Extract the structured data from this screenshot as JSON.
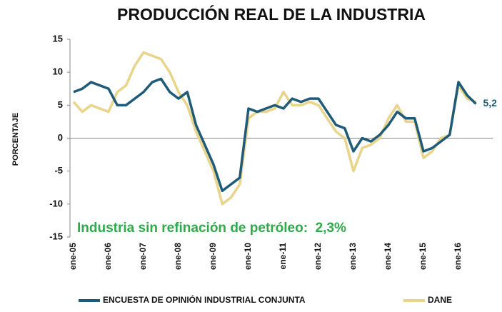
{
  "chart_data": {
    "type": "line",
    "title": "PRODUCCIÓN REAL DE LA INDUSTRIA",
    "ylabel": "PORCENTAJE",
    "annotation": "Industria sin refinación de petróleo:  2,3%",
    "categories": [
      "ene-05",
      null,
      null,
      null,
      "ene-06",
      null,
      null,
      null,
      "ene-07",
      null,
      null,
      null,
      "ene-08",
      null,
      null,
      null,
      "ene-09",
      null,
      null,
      null,
      "ene-10",
      null,
      null,
      null,
      "ene-11",
      null,
      null,
      null,
      "ene-12",
      null,
      null,
      null,
      "ene-13",
      null,
      null,
      null,
      "ene-14",
      null,
      null,
      null,
      "ene-15",
      null,
      null,
      null,
      "ene-16",
      null,
      null
    ],
    "series": [
      {
        "name": "ENCUESTA DE OPINIÓN INDUSTRIAL CONJUNTA",
        "color": "#1f5b78",
        "values": [
          7,
          7.5,
          8.5,
          8,
          7.5,
          5,
          5,
          6,
          7,
          8.5,
          9,
          7,
          6,
          7,
          2,
          -1,
          -4,
          -8,
          -7,
          -6,
          4.5,
          4,
          4.5,
          5,
          4.5,
          6,
          5.5,
          6,
          6,
          4,
          2,
          1.5,
          -2,
          0,
          -0.5,
          0.5,
          2,
          4,
          3,
          3,
          -2,
          -1.5,
          -0.5,
          0.5,
          8.5,
          6.5,
          5.2
        ],
        "value_labels": [
          null,
          null,
          null,
          null,
          null,
          null,
          null,
          null,
          null,
          null,
          null,
          null,
          null,
          null,
          null,
          null,
          null,
          null,
          null,
          null,
          null,
          null,
          null,
          null,
          null,
          null,
          null,
          null,
          null,
          null,
          null,
          null,
          null,
          null,
          null,
          null,
          null,
          null,
          null,
          null,
          null,
          null,
          null,
          null,
          null,
          null,
          "5,2"
        ]
      },
      {
        "name": "DANE",
        "color": "#e8d48a",
        "values": [
          5.5,
          4,
          5,
          4.5,
          4,
          7,
          8,
          11,
          13,
          12.5,
          12,
          10,
          7,
          5,
          1,
          -2,
          -5,
          -10,
          -9,
          -7,
          3,
          4,
          4,
          4.5,
          7,
          5,
          5,
          5.5,
          5,
          3,
          1,
          0,
          -5,
          -1.5,
          -1,
          0,
          3,
          5,
          2.5,
          2.5,
          -3,
          -2,
          0,
          0.5,
          8,
          6,
          5.5
        ]
      }
    ],
    "ylim": [
      -15,
      15
    ],
    "yticks": [
      -15,
      -10,
      -5,
      0,
      5,
      10,
      15
    ],
    "annotation_color": "#2eaa4a"
  }
}
